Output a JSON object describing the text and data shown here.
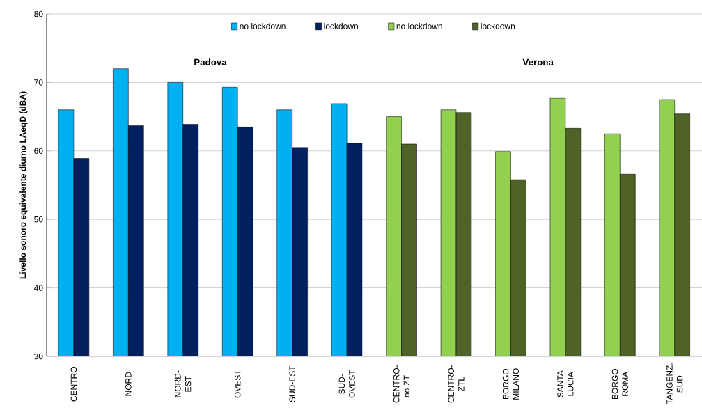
{
  "chart_data": {
    "type": "bar",
    "ylabel": "Livello sonoro equivalente diurno LAeqD (dBA)",
    "categories": [
      "CENTRO",
      "NORD",
      "NORD-EST",
      "OVEST",
      "SUD-EST",
      "SUD-OVEST",
      "CENTRO-no ZTL",
      "CENTRO-ZTL",
      "BORGO MILANO",
      "SANTA LUCIA",
      "BORGO ROMA",
      "TANGENZ. SUD"
    ],
    "series": [
      {
        "name": "no lockdown",
        "color": "#00b0f0",
        "values": [
          66,
          72,
          70,
          69.3,
          66,
          66.9,
          null,
          null,
          null,
          null,
          null,
          null
        ]
      },
      {
        "name": "lockdown",
        "color": "#002060",
        "values": [
          58.9,
          63.7,
          63.9,
          63.5,
          60.5,
          61.1,
          null,
          null,
          null,
          null,
          null,
          null
        ]
      },
      {
        "name": "no lockdown",
        "color": "#92d050",
        "values": [
          null,
          null,
          null,
          null,
          null,
          null,
          65,
          66,
          59.9,
          67.7,
          62.5,
          67.5
        ]
      },
      {
        "name": "lockdown",
        "color": "#4f6228",
        "values": [
          null,
          null,
          null,
          null,
          null,
          null,
          61,
          65.6,
          55.8,
          63.3,
          56.6,
          65.4
        ]
      }
    ],
    "annotations": [
      "Padova",
      "Verona"
    ],
    "ylim": [
      30,
      80
    ],
    "yticks": [
      30,
      40,
      50,
      60,
      70,
      80
    ],
    "grid": "y",
    "legend": "top"
  }
}
